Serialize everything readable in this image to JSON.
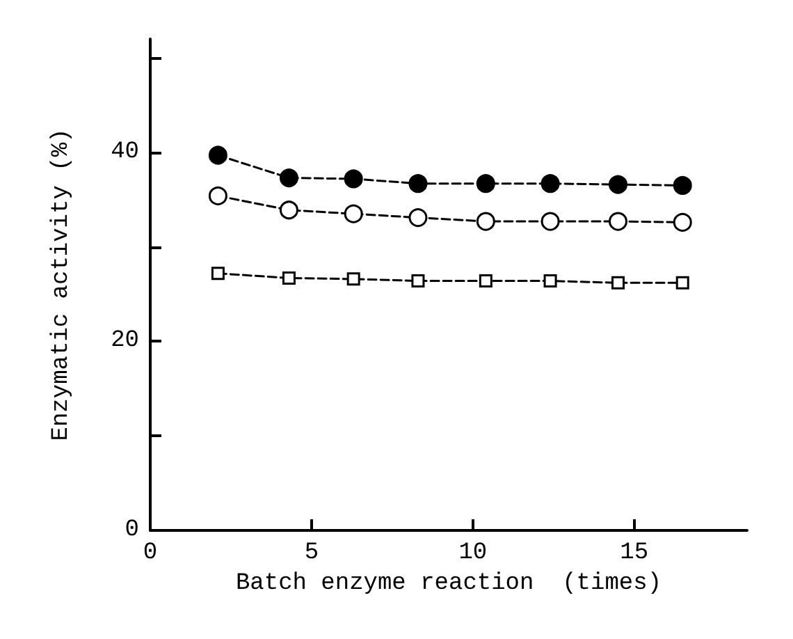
{
  "chart_data": {
    "type": "line",
    "xlabel": "Batch enzyme reaction  (times)",
    "ylabel": "Enzymatic activity (%)",
    "x": [
      2.1,
      4.3,
      6.3,
      8.3,
      10.4,
      12.4,
      14.5,
      16.5
    ],
    "series": [
      {
        "color": "#000000",
        "marker": "circle",
        "values": [
          39.7,
          37.3,
          37.2,
          36.7,
          36.7,
          36.7,
          36.6,
          36.5
        ]
      },
      {
        "color": "#000000",
        "marker": "circle",
        "values": [
          35.4,
          33.9,
          33.5,
          33.1,
          32.7,
          32.7,
          32.7,
          32.6
        ]
      },
      {
        "color": "#000000",
        "marker": "square",
        "values": [
          27.2,
          26.7,
          26.6,
          26.4,
          26.4,
          26.4,
          26.2,
          26.2
        ]
      }
    ],
    "line_style": "dashed",
    "xlim": [
      0,
      18.5
    ],
    "xticks": [
      0,
      5,
      10,
      15
    ],
    "ylim": [
      0,
      52
    ],
    "yticks": [
      0,
      {
        "value": 10,
        "label": null
      },
      20,
      {
        "value": 30,
        "label": null
      },
      40,
      {
        "value": 50,
        "label": null
      }
    ],
    "grid": false
  }
}
